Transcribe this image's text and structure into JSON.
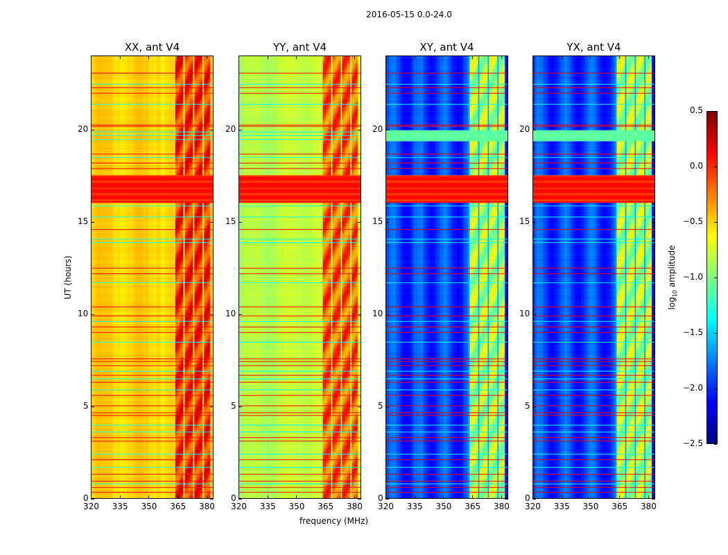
{
  "chart_data": {
    "type": "heatmap",
    "title": "2016-05-15 0.0-24.0",
    "xlabel": "frequency (MHz)",
    "ylabel": "UT (hours)",
    "xlim": [
      320,
      383.6
    ],
    "ylim": [
      0,
      24
    ],
    "xticks": [
      320,
      335,
      350,
      365,
      380
    ],
    "yticks": [
      0,
      5,
      10,
      15,
      20
    ],
    "colorbar": {
      "label_main": "log",
      "label_sub": "10",
      "label_rest": " amplitude",
      "range": [
        -2.5,
        0.5
      ],
      "ticks": [
        0.5,
        0.0,
        -0.5,
        -1.0,
        -1.5,
        -2.0,
        -2.5
      ],
      "tick_labels": [
        "0.5",
        "0.0",
        "−0.5",
        "−1.0",
        "−1.5",
        "−2.0",
        "−2.5"
      ],
      "colormap": "jet"
    },
    "panels": [
      {
        "title": "XX, ant V4",
        "base_level": -0.5,
        "band_level": 0.0
      },
      {
        "title": "YY, ant V4",
        "base_level": -0.75,
        "band_level": -0.15
      },
      {
        "title": "XY, ant V4",
        "base_level": -1.95,
        "band_level": -0.85
      },
      {
        "title": "YX, ant V4",
        "base_level": -1.95,
        "band_level": -0.85
      }
    ],
    "band_freq_range_mhz": [
      363,
      382
    ],
    "rfi_rows_hours": [
      0.35,
      0.6,
      0.95,
      1.3,
      2.1,
      3.1,
      3.3,
      4.5,
      4.65,
      5.05,
      5.6,
      6.3,
      6.7,
      7.2,
      7.45,
      7.6,
      9.0,
      9.3,
      9.9,
      10.4,
      12.2,
      12.5,
      14.6,
      16.1,
      16.6,
      16.9,
      17.9,
      18.2,
      18.7,
      20.2,
      20.3,
      22.0,
      22.3,
      23.1
    ],
    "flagged_bands_hours": [
      [
        16.05,
        17.55
      ]
    ],
    "cyan_rows_hours": [
      0.8,
      1.7,
      2.4,
      3.6,
      4.0,
      5.9,
      6.5,
      6.9,
      8.5,
      9.6,
      11.7,
      13.9,
      14.1,
      15.3,
      15.9,
      18.5,
      19.5,
      19.7,
      19.9,
      21.4,
      22.5
    ]
  }
}
